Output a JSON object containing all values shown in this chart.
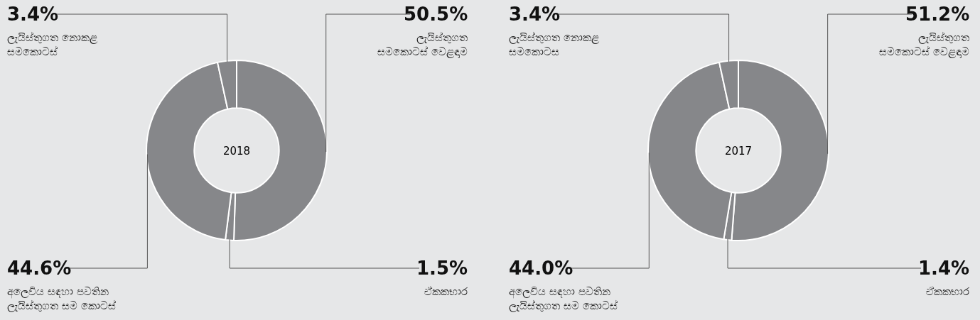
{
  "chart_data": [
    {
      "type": "donut",
      "title": "2018",
      "categories": [
        "ලැයිස්තුගත\nසමකොටස් වෙළඳාම",
        "ඒකකභාර",
        "අලෙවිය සඳහා පවතින\nලැයිස්තුගත සම කොටස්",
        "ලැයිස්තුගත නොකළ\nසමකොටස්"
      ],
      "values": [
        50.5,
        1.5,
        44.6,
        3.4
      ],
      "value_labels": [
        "50.5%",
        "1.5%",
        "44.6%",
        "3.4%"
      ],
      "colors": [
        "#86878a",
        "#86878a",
        "#86878a",
        "#86878a"
      ]
    },
    {
      "type": "donut",
      "title": "2017",
      "categories": [
        "ලැයිස්තුගත\nසමකොටස් වෙළඳාම",
        "ඒකකභාර",
        "අලෙවිය සඳහා පවතින\nලැයිස්තුගත සම කොටස්",
        "ලැයිස්තුගත නොකළ\nසමකොටස"
      ],
      "values": [
        51.2,
        1.4,
        44.0,
        3.4
      ],
      "value_labels": [
        "51.2%",
        "1.4%",
        "44.0%",
        "3.4%"
      ],
      "colors": [
        "#86878a",
        "#86878a",
        "#86878a",
        "#86878a"
      ]
    }
  ]
}
